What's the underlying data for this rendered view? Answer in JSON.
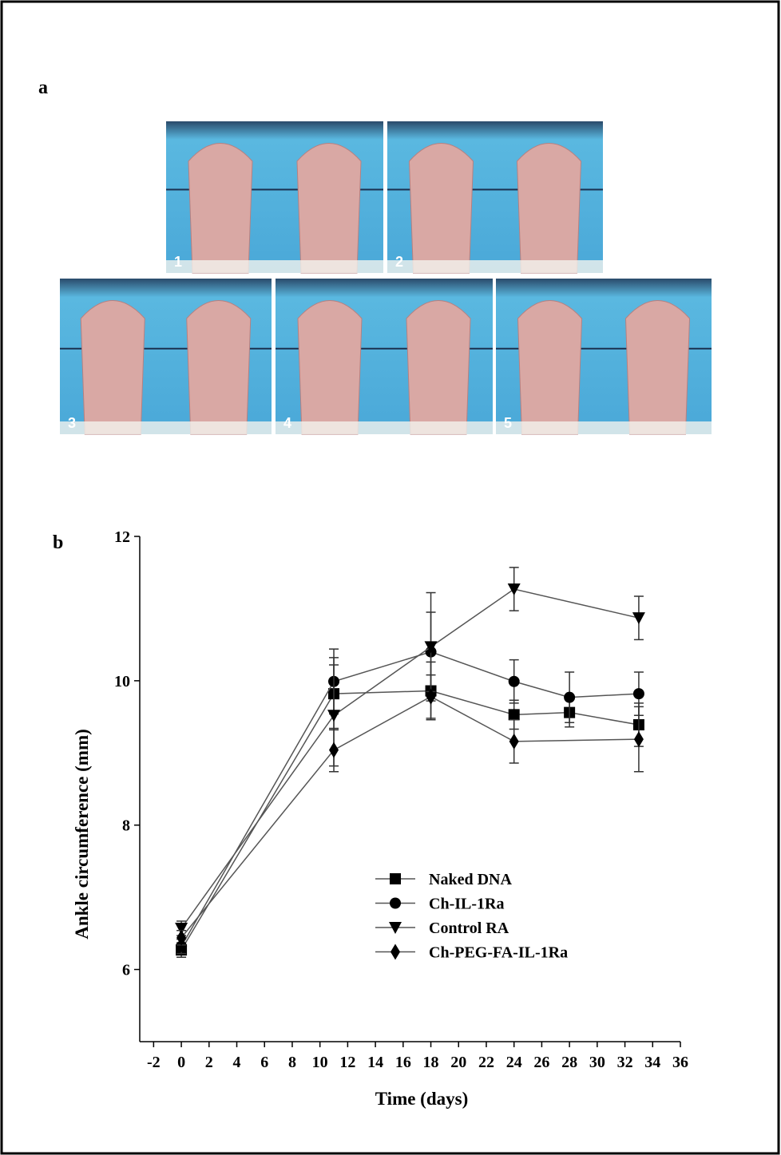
{
  "panel_a": {
    "label": "a",
    "photos": [
      "1",
      "2",
      "3",
      "4",
      "5"
    ]
  },
  "panel_b": {
    "label": "b"
  },
  "chart_data": {
    "type": "line",
    "xlabel": "Time (days)",
    "ylabel": "Ankle circumference (mm)",
    "xlim": [
      -3,
      36
    ],
    "xticks": [
      -2,
      0,
      2,
      4,
      6,
      8,
      10,
      12,
      14,
      16,
      18,
      20,
      22,
      24,
      26,
      28,
      30,
      32,
      34,
      36
    ],
    "ylim": [
      5,
      12
    ],
    "yticks": [
      6,
      8,
      10,
      12
    ],
    "legend": "center",
    "line_color": "#555555",
    "series": [
      {
        "name": "Naked DNA",
        "marker": "square",
        "color": "#000000",
        "x": [
          0,
          11,
          18,
          24,
          28,
          33
        ],
        "values": [
          6.27,
          9.82,
          9.86,
          9.53,
          9.56,
          9.39
        ],
        "errors": [
          0.1,
          0.5,
          0.4,
          0.2,
          0.2,
          0.3
        ]
      },
      {
        "name": "Ch-IL-1Ra",
        "marker": "circle",
        "color": "#000000",
        "x": [
          0,
          11,
          18,
          24,
          28,
          33
        ],
        "values": [
          6.32,
          9.99,
          10.4,
          9.99,
          9.77,
          9.82
        ],
        "errors": [
          0.1,
          0.45,
          0.55,
          0.3,
          0.35,
          0.3
        ]
      },
      {
        "name": "Control RA",
        "marker": "triangle-down",
        "color": "#000000",
        "x": [
          0,
          11,
          18,
          24,
          33
        ],
        "values": [
          6.57,
          9.52,
          10.47,
          11.27,
          10.87
        ],
        "errors": [
          0.1,
          0.7,
          0.75,
          0.3,
          0.3
        ]
      },
      {
        "name": "Ch-PEG-FA-IL-1Ra",
        "marker": "diamond",
        "color": "#000000",
        "x": [
          0,
          11,
          18,
          24,
          33
        ],
        "values": [
          6.44,
          9.04,
          9.78,
          9.16,
          9.19
        ],
        "errors": [
          0.1,
          0.3,
          0.3,
          0.3,
          0.45
        ]
      }
    ]
  }
}
